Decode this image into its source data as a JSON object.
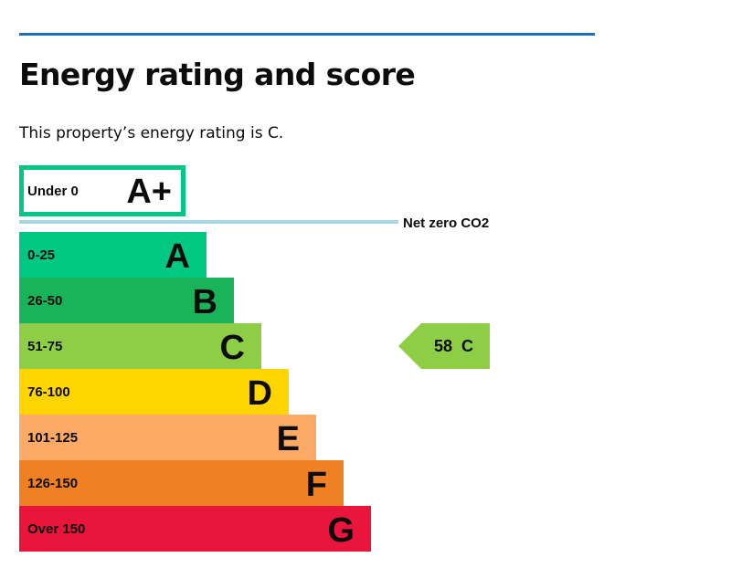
{
  "header": {
    "title": "Energy rating and score",
    "summary": "This property’s energy rating is C."
  },
  "colors": {
    "rule": "#1d70b8",
    "net_zero_line": "#a6d8df"
  },
  "chart_data": {
    "type": "bar",
    "net_zero_label": "Net zero CO2",
    "bands": [
      {
        "range": "Under 0",
        "letter": "A+",
        "color": "#00c781",
        "outline": true
      },
      {
        "range": "0-25",
        "letter": "A",
        "color": "#00c781"
      },
      {
        "range": "26-50",
        "letter": "B",
        "color": "#19b459"
      },
      {
        "range": "51-75",
        "letter": "C",
        "color": "#8dce46"
      },
      {
        "range": "76-100",
        "letter": "D",
        "color": "#ffd500"
      },
      {
        "range": "101-125",
        "letter": "E",
        "color": "#fcaa65"
      },
      {
        "range": "126-150",
        "letter": "F",
        "color": "#ef8023"
      },
      {
        "range": "Over 150",
        "letter": "G",
        "color": "#e9153b"
      }
    ],
    "current": {
      "score": "58",
      "letter": "C",
      "band_index": 3,
      "color": "#8dce46"
    }
  }
}
